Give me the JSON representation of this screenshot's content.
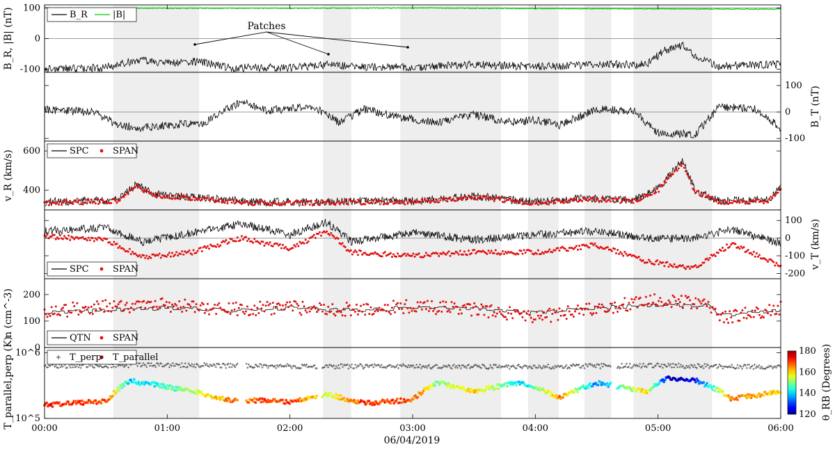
{
  "chart_data": {
    "type": "line",
    "xlabel": "06/04/2019",
    "x_ticks": [
      "00:00",
      "01:00",
      "02:00",
      "03:00",
      "04:00",
      "05:00",
      "06:00"
    ],
    "x_range_hours": [
      0,
      6
    ],
    "grid": "horizontal zero/reference lines",
    "patch_intervals_hours": [
      [
        0.56,
        1.26
      ],
      [
        2.27,
        2.5
      ],
      [
        2.9,
        3.72
      ],
      [
        3.94,
        4.19
      ],
      [
        4.4,
        4.62
      ],
      [
        4.8,
        5.44
      ]
    ],
    "panels": [
      {
        "id": "B",
        "ylabel": "B_R, |B| (nT)",
        "ylabel_side": "left",
        "ylim": [
          -110,
          110
        ],
        "yticks": [
          -100,
          0,
          100
        ],
        "ref_lines": [
          0,
          100
        ],
        "legend": [
          "B_R",
          "|B|"
        ],
        "legend_position": "top-left",
        "annotation": "Patches",
        "series": [
          {
            "name": "B_R",
            "color": "#000000",
            "x": [
              0,
              0.5,
              0.6,
              0.75,
              1.0,
              1.25,
              1.5,
              2.0,
              2.3,
              2.5,
              3.0,
              3.5,
              4.0,
              4.5,
              4.9,
              5.05,
              5.2,
              5.3,
              5.5,
              6.0
            ],
            "y": [
              -100,
              -95,
              -85,
              -70,
              -80,
              -75,
              -95,
              -95,
              -85,
              -92,
              -95,
              -85,
              -92,
              -85,
              -85,
              -40,
              -20,
              -60,
              -90,
              -85
            ]
          },
          {
            "name": "|B|",
            "color": "#00cc00",
            "x": [
              0,
              1,
              2,
              3,
              4,
              5,
              6
            ],
            "y": [
              100,
              99,
              99,
              100,
              98,
              97,
              96
            ]
          }
        ]
      },
      {
        "id": "BT",
        "ylabel": "B_T (nT)",
        "ylabel_side": "right",
        "ylim": [
          -110,
          150
        ],
        "yticks": [
          -100,
          0,
          100
        ],
        "ref_lines": [
          0
        ],
        "series": [
          {
            "name": "B_T",
            "color": "#000000",
            "x": [
              0,
              0.4,
              0.6,
              0.8,
              1.0,
              1.3,
              1.6,
              1.8,
              2.2,
              2.4,
              2.6,
              2.9,
              3.2,
              3.5,
              3.8,
              4.0,
              4.2,
              4.5,
              4.8,
              5.0,
              5.3,
              5.5,
              5.8,
              6.0
            ],
            "y": [
              10,
              0,
              -50,
              -60,
              -50,
              -40,
              40,
              5,
              20,
              -40,
              10,
              -20,
              -40,
              -10,
              -40,
              -30,
              -50,
              10,
              5,
              -80,
              -85,
              20,
              10,
              -60
            ]
          }
        ]
      },
      {
        "id": "vR",
        "ylabel": "v_R (km/s)",
        "ylabel_side": "left",
        "ylim": [
          300,
          650
        ],
        "yticks": [
          400,
          600
        ],
        "legend": [
          "SPC",
          "SPAN"
        ],
        "legend_position": "top-left",
        "series": [
          {
            "name": "SPC",
            "color": "#000000",
            "x": [
              0,
              0.6,
              0.75,
              0.9,
              1.3,
              1.7,
              2.2,
              2.5,
              3.0,
              3.5,
              4.0,
              4.4,
              4.8,
              5.0,
              5.1,
              5.2,
              5.3,
              5.5,
              5.9,
              6.0
            ],
            "y": [
              340,
              350,
              430,
              380,
              360,
              340,
              340,
              345,
              345,
              370,
              340,
              360,
              350,
              410,
              480,
              550,
              400,
              345,
              350,
              420
            ]
          },
          {
            "name": "SPAN",
            "color": "#e01010",
            "x": [
              0,
              0.6,
              0.75,
              0.9,
              1.3,
              1.7,
              2.2,
              2.5,
              3.0,
              3.5,
              4.0,
              4.4,
              4.8,
              5.0,
              5.1,
              5.2,
              5.3,
              5.5,
              5.9,
              6.0
            ],
            "y": [
              335,
              345,
              420,
              375,
              355,
              335,
              335,
              340,
              340,
              365,
              335,
              355,
              345,
              400,
              470,
              540,
              395,
              340,
              345,
              410
            ]
          }
        ]
      },
      {
        "id": "vT",
        "ylabel": "v_T (km/s)",
        "ylabel_side": "right",
        "ylim": [
          -230,
          160
        ],
        "yticks": [
          -200,
          -100,
          0,
          100
        ],
        "ref_lines": [
          0
        ],
        "legend": [
          "SPC",
          "SPAN"
        ],
        "legend_position": "bottom-left",
        "series": [
          {
            "name": "SPC",
            "color": "#000000",
            "x": [
              0,
              0.5,
              0.8,
              1.2,
              1.6,
              2.0,
              2.3,
              2.5,
              3.0,
              3.5,
              4.0,
              4.5,
              4.9,
              5.3,
              5.6,
              6.0
            ],
            "y": [
              40,
              60,
              -20,
              30,
              80,
              20,
              90,
              -20,
              30,
              -10,
              20,
              40,
              0,
              0,
              50,
              -30
            ]
          },
          {
            "name": "SPAN",
            "color": "#e01010",
            "x": [
              0,
              0.5,
              0.8,
              1.2,
              1.6,
              2.0,
              2.3,
              2.5,
              3.0,
              3.5,
              4.0,
              4.5,
              4.9,
              5.3,
              5.6,
              6.0
            ],
            "y": [
              10,
              -10,
              -110,
              -80,
              0,
              -60,
              40,
              -80,
              -100,
              -80,
              -80,
              -40,
              -130,
              -170,
              -30,
              -160
            ]
          }
        ]
      },
      {
        "id": "n",
        "ylabel": "n (cm^-3)",
        "ylabel_side": "left",
        "ylim": [
          0,
          260
        ],
        "yticks": [
          0,
          100,
          200
        ],
        "legend": [
          "QTN",
          "SPAN"
        ],
        "legend_position": "bottom-left",
        "series": [
          {
            "name": "QTN",
            "color": "#000000",
            "x": [
              0,
              0.5,
              1.0,
              1.5,
              2.0,
              2.5,
              3.0,
              3.5,
              4.0,
              4.5,
              5.0,
              5.4,
              5.5,
              6.0
            ],
            "y": [
              130,
              140,
              150,
              140,
              150,
              140,
              150,
              150,
              130,
              150,
              160,
              160,
              120,
              140
            ]
          },
          {
            "name": "SPAN",
            "color": "#e01010",
            "x": [
              0,
              0.5,
              1.0,
              1.5,
              2.0,
              2.5,
              3.0,
              3.5,
              4.0,
              4.5,
              5.0,
              5.4,
              5.5,
              6.0
            ],
            "y": [
              135,
              155,
              160,
              145,
              150,
              145,
              155,
              145,
              115,
              145,
              180,
              170,
              110,
              150
            ]
          }
        ]
      },
      {
        "id": "T",
        "ylabel": "T_parallel,perp (K)",
        "ylabel_side": "left",
        "yscale": "log",
        "ylim": [
          100000,
          1200000
        ],
        "yticks": [
          "10^5",
          "10^6"
        ],
        "legend": [
          "T_perp",
          "T_parallel"
        ],
        "legend_position": "top-left",
        "colorbar": {
          "label": "θ_RB (Degrees)",
          "range": [
            120,
            180
          ],
          "ticks": [
            120,
            140,
            160,
            180
          ],
          "colormap": "jet"
        },
        "series": [
          {
            "name": "T_perp",
            "marker": "+",
            "x": [
              0,
              1,
              2,
              3,
              4,
              5,
              6
            ],
            "y": [
              630000,
              650000,
              620000,
              620000,
              610000,
              640000,
              600000
            ]
          },
          {
            "name": "T_parallel",
            "marker": "dot",
            "x": [
              0,
              0.5,
              0.7,
              1.0,
              1.5,
              2.0,
              2.3,
              2.6,
              3.0,
              3.2,
              3.5,
              3.9,
              4.2,
              4.5,
              4.9,
              5.1,
              5.3,
              5.6,
              6.0
            ],
            "y": [
              160000,
              180000,
              370000,
              300000,
              190000,
              180000,
              230000,
              170000,
              190000,
              350000,
              260000,
              350000,
              200000,
              350000,
              250000,
              420000,
              380000,
              200000,
              250000
            ],
            "theta": [
              172,
              168,
              140,
              145,
              165,
              170,
              155,
              170,
              168,
              150,
              160,
              140,
              165,
              135,
              160,
              122,
              128,
              165,
              160
            ]
          }
        ]
      }
    ]
  }
}
